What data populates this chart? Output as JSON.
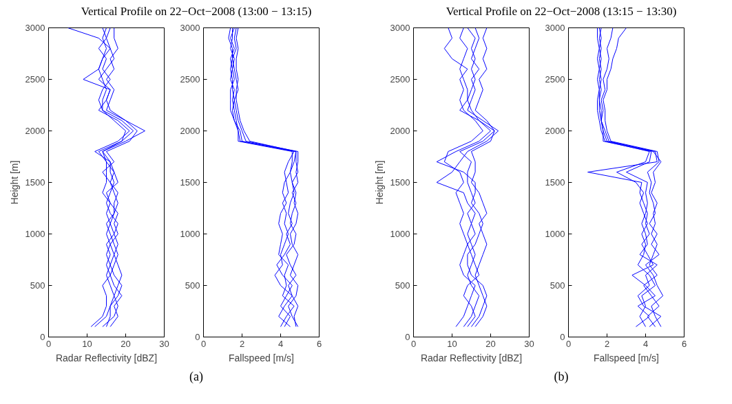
{
  "chart_data": [
    {
      "type": "line",
      "title": "Vertical Profile on 22−Oct−2008 (13:00 − 13:15)",
      "annotations": [
        "(a)"
      ],
      "xlabel": "Radar Reflectivity [dBZ]",
      "ylabel": "Height [m]",
      "xlim": [
        0,
        30
      ],
      "xticks": [
        0,
        10,
        20,
        30
      ],
      "ylim": [
        0,
        3000
      ],
      "yticks": [
        0,
        500,
        1000,
        1500,
        2000,
        2500,
        3000
      ],
      "line_style": "solid",
      "series": [
        {
          "color": "#0000ff",
          "x": [
            12,
            15,
            16,
            17,
            16,
            15,
            16,
            17,
            16,
            15,
            16,
            15,
            16,
            14,
            15,
            15,
            15,
            13,
            19,
            22,
            19,
            14,
            14,
            15,
            14,
            13,
            14,
            15,
            14,
            15
          ],
          "values": [
            100,
            200,
            300,
            400,
            500,
            600,
            700,
            800,
            900,
            1000,
            1100,
            1200,
            1300,
            1400,
            1500,
            1600,
            1700,
            1800,
            1900,
            2000,
            2100,
            2200,
            2300,
            2400,
            2500,
            2600,
            2700,
            2800,
            2900,
            3000
          ]
        },
        {
          "color": "#0000ff",
          "x": [
            14,
            17,
            18,
            17,
            18,
            19,
            18,
            17,
            18,
            17,
            16,
            17,
            18,
            17,
            16,
            17,
            15,
            14,
            20,
            25,
            20,
            16,
            15,
            16,
            13,
            15,
            17,
            16,
            15,
            16
          ],
          "values": [
            100,
            200,
            300,
            400,
            500,
            600,
            700,
            800,
            900,
            1000,
            1100,
            1200,
            1300,
            1400,
            1500,
            1600,
            1700,
            1800,
            1900,
            2000,
            2100,
            2200,
            2300,
            2400,
            2500,
            2600,
            2700,
            2800,
            2900,
            3000
          ]
        },
        {
          "color": "#0000ff",
          "x": [
            16,
            18,
            17,
            19,
            17,
            16,
            15,
            16,
            15,
            17,
            18,
            16,
            15,
            16,
            17,
            16,
            16,
            12,
            18,
            21,
            18,
            13,
            15,
            16,
            9,
            13,
            14,
            16,
            13,
            5
          ],
          "values": [
            100,
            200,
            300,
            400,
            500,
            600,
            700,
            800,
            900,
            1000,
            1100,
            1200,
            1300,
            1400,
            1500,
            1600,
            1700,
            1800,
            1900,
            2000,
            2100,
            2200,
            2300,
            2400,
            2500,
            2600,
            2700,
            2800,
            2900,
            3000
          ]
        },
        {
          "color": "#0000ff",
          "x": [
            11,
            14,
            15,
            15,
            14,
            16,
            17,
            18,
            17,
            16,
            15,
            17,
            17,
            18,
            16,
            14,
            17,
            15,
            21,
            23,
            20,
            15,
            16,
            17,
            15,
            17,
            16,
            18,
            17,
            17
          ],
          "values": [
            100,
            200,
            300,
            400,
            500,
            600,
            700,
            800,
            900,
            1000,
            1100,
            1200,
            1300,
            1400,
            1500,
            1600,
            1700,
            1800,
            1900,
            2000,
            2100,
            2200,
            2300,
            2400,
            2500,
            2600,
            2700,
            2800,
            2900,
            3000
          ]
        },
        {
          "color": "#0000ff",
          "x": [
            15,
            16,
            16,
            18,
            19,
            17,
            16,
            15,
            16,
            18,
            17,
            18,
            16,
            15,
            18,
            17,
            16,
            14,
            19,
            20,
            17,
            14,
            13,
            14,
            16,
            14,
            15,
            13,
            15,
            14
          ],
          "values": [
            100,
            200,
            300,
            400,
            500,
            600,
            700,
            800,
            900,
            1000,
            1100,
            1200,
            1300,
            1400,
            1500,
            1600,
            1700,
            1800,
            1900,
            2000,
            2100,
            2200,
            2300,
            2400,
            2500,
            2600,
            2700,
            2800,
            2900,
            3000
          ]
        }
      ]
    },
    {
      "type": "line",
      "xlabel": "Fallspeed [m/s]",
      "xlim": [
        0,
        6
      ],
      "xticks": [
        0,
        2,
        4,
        6
      ],
      "ylim": [
        0,
        3000
      ],
      "yticks": [
        0,
        500,
        1000,
        1500,
        2000,
        2500,
        3000
      ],
      "line_style": "solid",
      "series": [
        {
          "color": "#0000ff",
          "x": [
            4.2,
            4.5,
            4.0,
            4.3,
            4.6,
            4.1,
            3.8,
            4.2,
            4.5,
            4.3,
            4.6,
            4.4,
            4.5,
            4.7,
            4.6,
            4.5,
            4.7,
            4.8,
            1.9,
            1.8,
            1.7,
            1.6,
            1.5,
            1.6,
            1.4,
            1.5,
            1.6,
            1.4,
            1.5,
            1.5
          ],
          "values": [
            100,
            200,
            300,
            400,
            500,
            600,
            700,
            800,
            900,
            1000,
            1100,
            1200,
            1300,
            1400,
            1500,
            1600,
            1700,
            1800,
            1900,
            2000,
            2100,
            2200,
            2300,
            2400,
            2500,
            2600,
            2700,
            2800,
            2900,
            3000
          ]
        },
        {
          "color": "#0000ff",
          "x": [
            4.8,
            4.7,
            4.9,
            4.6,
            4.4,
            4.8,
            4.5,
            4.3,
            4.7,
            4.8,
            4.5,
            4.6,
            4.8,
            4.6,
            4.9,
            4.8,
            4.9,
            4.9,
            2.2,
            2.0,
            1.8,
            1.7,
            1.6,
            1.8,
            1.7,
            1.6,
            1.5,
            1.7,
            1.6,
            1.7
          ],
          "values": [
            100,
            200,
            300,
            400,
            500,
            600,
            700,
            800,
            900,
            1000,
            1100,
            1200,
            1300,
            1400,
            1500,
            1600,
            1700,
            1800,
            1900,
            2000,
            2100,
            2200,
            2300,
            2400,
            2500,
            2600,
            2700,
            2800,
            2900,
            3000
          ]
        },
        {
          "color": "#0000ff",
          "x": [
            4.5,
            3.9,
            4.2,
            4.6,
            4.0,
            3.7,
            4.1,
            4.0,
            4.2,
            4.4,
            4.2,
            4.3,
            4.1,
            4.4,
            4.3,
            4.2,
            4.4,
            4.7,
            2.0,
            1.9,
            1.6,
            1.5,
            1.6,
            1.5,
            1.5,
            1.4,
            1.5,
            1.5,
            1.3,
            1.4
          ],
          "values": [
            100,
            200,
            300,
            400,
            500,
            600,
            700,
            800,
            900,
            1000,
            1100,
            1200,
            1300,
            1400,
            1500,
            1600,
            1700,
            1800,
            1900,
            2000,
            2100,
            2200,
            2300,
            2400,
            2500,
            2600,
            2700,
            2800,
            2900,
            3000
          ]
        },
        {
          "color": "#0000ff",
          "x": [
            4.9,
            4.6,
            4.4,
            4.8,
            4.9,
            4.5,
            4.7,
            4.9,
            4.6,
            4.5,
            4.8,
            4.9,
            4.7,
            4.8,
            4.6,
            4.9,
            4.8,
            4.8,
            2.4,
            2.1,
            1.9,
            1.8,
            1.7,
            1.7,
            1.8,
            1.7,
            1.7,
            1.8,
            1.7,
            1.8
          ],
          "values": [
            100,
            200,
            300,
            400,
            500,
            600,
            700,
            800,
            900,
            1000,
            1100,
            1200,
            1300,
            1400,
            1500,
            1600,
            1700,
            1800,
            1900,
            2000,
            2100,
            2200,
            2300,
            2400,
            2500,
            2600,
            2700,
            2800,
            2900,
            3000
          ]
        },
        {
          "color": "#0000ff",
          "x": [
            4.0,
            4.3,
            4.7,
            4.1,
            4.3,
            4.2,
            4.4,
            3.9,
            4.0,
            4.1,
            3.9,
            4.0,
            4.3,
            4.1,
            4.2,
            4.5,
            4.6,
            4.6,
            1.8,
            1.8,
            1.6,
            1.4,
            1.4,
            1.4,
            1.6,
            1.5,
            1.4,
            1.6,
            1.4,
            1.6
          ],
          "values": [
            100,
            200,
            300,
            400,
            500,
            600,
            700,
            800,
            900,
            1000,
            1100,
            1200,
            1300,
            1400,
            1500,
            1600,
            1700,
            1800,
            1900,
            2000,
            2100,
            2200,
            2300,
            2400,
            2500,
            2600,
            2700,
            2800,
            2900,
            3000
          ]
        }
      ]
    },
    {
      "type": "line",
      "title": "Vertical Profile on 22−Oct−2008 (13:15 − 13:30)",
      "annotations": [
        "(b)"
      ],
      "xlabel": "Radar Reflectivity [dBZ]",
      "ylabel": "Height [m]",
      "xlim": [
        0,
        30
      ],
      "xticks": [
        0,
        10,
        20,
        30
      ],
      "ylim": [
        0,
        3000
      ],
      "yticks": [
        0,
        500,
        1000,
        1500,
        2000,
        2500,
        3000
      ],
      "line_style": "solid",
      "series": [
        {
          "color": "#0000ff",
          "x": [
            13,
            15,
            16,
            17,
            15,
            14,
            15,
            16,
            15,
            14,
            15,
            16,
            14,
            13,
            6,
            10,
            12,
            14,
            19,
            22,
            18,
            14,
            15,
            16,
            15,
            17,
            15,
            16,
            17,
            16
          ],
          "values": [
            100,
            200,
            300,
            400,
            500,
            600,
            700,
            800,
            900,
            1000,
            1100,
            1200,
            1300,
            1400,
            1500,
            1600,
            1700,
            1800,
            1900,
            2000,
            2100,
            2200,
            2300,
            2400,
            2500,
            2600,
            2700,
            2800,
            2900,
            3000
          ]
        },
        {
          "color": "#0000ff",
          "x": [
            16,
            18,
            19,
            18,
            17,
            16,
            17,
            18,
            19,
            18,
            17,
            19,
            18,
            17,
            15,
            16,
            16,
            15,
            20,
            21,
            19,
            16,
            17,
            18,
            17,
            19,
            18,
            19,
            18,
            19
          ],
          "values": [
            100,
            200,
            300,
            400,
            500,
            600,
            700,
            800,
            900,
            1000,
            1100,
            1200,
            1300,
            1400,
            1500,
            1600,
            1700,
            1800,
            1900,
            2000,
            2100,
            2200,
            2300,
            2400,
            2500,
            2600,
            2700,
            2800,
            2900,
            3000
          ]
        },
        {
          "color": "#0000ff",
          "x": [
            11,
            13,
            14,
            15,
            16,
            13,
            12,
            13,
            14,
            13,
            12,
            13,
            12,
            11,
            13,
            12,
            8,
            9,
            15,
            18,
            16,
            13,
            12,
            13,
            12,
            14,
            10,
            8,
            10,
            9
          ],
          "values": [
            100,
            200,
            300,
            400,
            500,
            600,
            700,
            800,
            900,
            1000,
            1100,
            1200,
            1300,
            1400,
            1500,
            1600,
            1700,
            1800,
            1900,
            2000,
            2100,
            2200,
            2300,
            2400,
            2500,
            2600,
            2700,
            2800,
            2900,
            3000
          ]
        },
        {
          "color": "#0000ff",
          "x": [
            14,
            16,
            15,
            13,
            14,
            17,
            16,
            15,
            14,
            16,
            15,
            14,
            16,
            15,
            14,
            14,
            15,
            12,
            18,
            21,
            17,
            15,
            14,
            14,
            13,
            12,
            13,
            14,
            12,
            13
          ],
          "values": [
            100,
            200,
            300,
            400,
            500,
            600,
            700,
            800,
            900,
            1000,
            1100,
            1200,
            1300,
            1400,
            1500,
            1600,
            1700,
            1800,
            1900,
            2000,
            2100,
            2200,
            2300,
            2400,
            2500,
            2600,
            2700,
            2800,
            2900,
            3000
          ]
        },
        {
          "color": "#0000ff",
          "x": [
            15,
            17,
            18,
            19,
            18,
            15,
            14,
            14,
            16,
            17,
            18,
            17,
            15,
            16,
            16,
            13,
            6,
            11,
            17,
            20,
            17,
            12,
            14,
            15,
            16,
            15,
            16,
            15,
            16,
            14
          ],
          "values": [
            100,
            200,
            300,
            400,
            500,
            600,
            700,
            800,
            900,
            1000,
            1100,
            1200,
            1300,
            1400,
            1500,
            1600,
            1700,
            1800,
            1900,
            2000,
            2100,
            2200,
            2300,
            2400,
            2500,
            2600,
            2700,
            2800,
            2900,
            3000
          ]
        }
      ]
    },
    {
      "type": "line",
      "xlabel": "Fallspeed [m/s]",
      "xlim": [
        0,
        6
      ],
      "xticks": [
        0,
        2,
        4,
        6
      ],
      "ylim": [
        0,
        3000
      ],
      "yticks": [
        0,
        500,
        1000,
        1500,
        2000,
        2500,
        3000
      ],
      "line_style": "solid",
      "series": [
        {
          "color": "#0000ff",
          "x": [
            3.5,
            4.2,
            3.6,
            4.5,
            4.0,
            3.3,
            4.4,
            4.1,
            3.8,
            4.2,
            4.0,
            4.1,
            3.9,
            3.7,
            3.8,
            1.0,
            4.6,
            4.5,
            2.0,
            1.8,
            1.7,
            1.8,
            1.7,
            1.9,
            1.8,
            2.0,
            2.1,
            2.0,
            2.2,
            2.3
          ],
          "values": [
            100,
            200,
            300,
            400,
            500,
            600,
            700,
            800,
            900,
            1000,
            1100,
            1200,
            1300,
            1400,
            1500,
            1600,
            1700,
            1800,
            1900,
            2000,
            2100,
            2200,
            2300,
            2400,
            2500,
            2600,
            2700,
            2800,
            2900,
            3000
          ]
        },
        {
          "color": "#0000ff",
          "x": [
            4.5,
            4.1,
            4.7,
            4.3,
            3.9,
            4.6,
            4.2,
            4.4,
            4.6,
            4.3,
            4.5,
            4.4,
            4.6,
            4.3,
            4.5,
            4.4,
            4.8,
            4.4,
            2.1,
            1.9,
            1.7,
            1.6,
            1.6,
            1.7,
            1.6,
            1.7,
            1.6,
            1.7,
            1.6,
            1.7
          ],
          "values": [
            100,
            200,
            300,
            400,
            500,
            600,
            700,
            800,
            900,
            1000,
            1100,
            1200,
            1300,
            1400,
            1500,
            1600,
            1700,
            1800,
            1900,
            2000,
            2100,
            2200,
            2300,
            2400,
            2500,
            2600,
            2700,
            2800,
            2900,
            3000
          ]
        },
        {
          "color": "#0000ff",
          "x": [
            4.0,
            3.7,
            4.0,
            3.8,
            4.5,
            4.2,
            3.6,
            3.9,
            4.0,
            3.8,
            4.1,
            3.9,
            3.7,
            3.9,
            3.5,
            2.5,
            4.0,
            4.2,
            1.9,
            1.7,
            1.6,
            1.5,
            1.5,
            1.6,
            1.5,
            1.6,
            1.5,
            1.6,
            1.5,
            1.5
          ],
          "values": [
            100,
            200,
            300,
            400,
            500,
            600,
            700,
            800,
            900,
            1000,
            1100,
            1200,
            1300,
            1400,
            1500,
            1600,
            1700,
            1800,
            1900,
            2000,
            2100,
            2200,
            2300,
            2400,
            2500,
            2600,
            2700,
            2800,
            2900,
            3000
          ]
        },
        {
          "color": "#0000ff",
          "x": [
            4.8,
            4.5,
            4.3,
            4.9,
            4.6,
            4.4,
            4.0,
            4.7,
            4.3,
            4.6,
            4.2,
            4.5,
            4.4,
            4.2,
            4.3,
            4.1,
            4.7,
            4.6,
            2.2,
            2.0,
            1.9,
            1.9,
            1.8,
            2.0,
            2.0,
            2.2,
            2.3,
            2.5,
            2.6,
            3.0
          ],
          "values": [
            100,
            200,
            300,
            400,
            500,
            600,
            700,
            800,
            900,
            1000,
            1100,
            1200,
            1300,
            1400,
            1500,
            1600,
            1700,
            1800,
            1900,
            2000,
            2100,
            2200,
            2300,
            2400,
            2500,
            2600,
            2700,
            2800,
            2900,
            3000
          ]
        },
        {
          "color": "#0000ff",
          "x": [
            4.2,
            4.8,
            3.9,
            3.6,
            4.2,
            4.0,
            4.6,
            3.7,
            4.1,
            4.0,
            3.8,
            4.0,
            4.1,
            4.0,
            4.1,
            3.0,
            4.2,
            4.3,
            1.8,
            1.8,
            1.7,
            1.7,
            1.6,
            1.6,
            1.7,
            1.6,
            1.7,
            1.6,
            1.7,
            1.6
          ],
          "values": [
            100,
            200,
            300,
            400,
            500,
            600,
            700,
            800,
            900,
            1000,
            1100,
            1200,
            1300,
            1400,
            1500,
            1600,
            1700,
            1800,
            1900,
            2000,
            2100,
            2200,
            2300,
            2400,
            2500,
            2600,
            2700,
            2800,
            2900,
            3000
          ]
        }
      ]
    }
  ]
}
